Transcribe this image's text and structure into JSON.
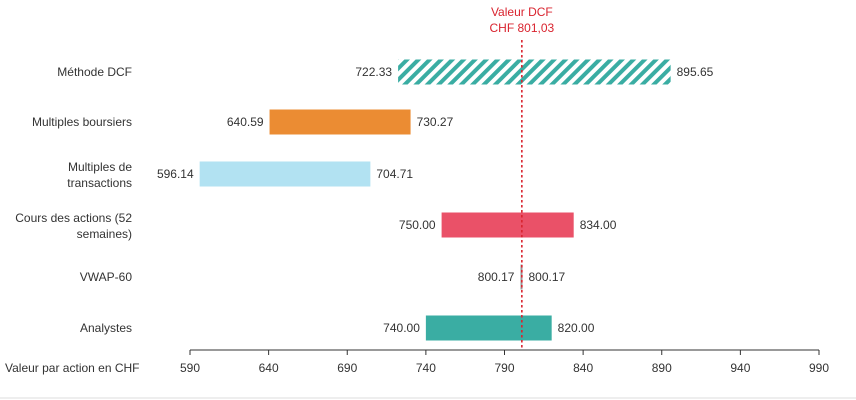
{
  "chart_data": {
    "type": "floating-bar",
    "orientation": "horizontal",
    "xlabel": "Valeur par action en CHF",
    "xlim": [
      590,
      990
    ],
    "xticks": [
      590,
      640,
      690,
      740,
      790,
      840,
      890,
      940,
      990
    ],
    "reference": {
      "value": 801.03,
      "label_line1": "Valeur DCF",
      "label_line2": "CHF 801,03",
      "color": "#d9232e"
    },
    "series": [
      {
        "category": [
          "Méthode DCF"
        ],
        "low": 722.33,
        "high": 895.65,
        "low_label": "722.33",
        "high_label": "895.65",
        "color": "#3aada3",
        "pattern": "hatched"
      },
      {
        "category": [
          "Multiples boursiers"
        ],
        "low": 640.59,
        "high": 730.27,
        "low_label": "640.59",
        "high_label": "730.27",
        "color": "#eb8c33",
        "pattern": "solid"
      },
      {
        "category": [
          "Multiples de",
          "transactions"
        ],
        "low": 596.14,
        "high": 704.71,
        "low_label": "596.14",
        "high_label": "704.71",
        "color": "#b2e2f2",
        "pattern": "solid"
      },
      {
        "category": [
          "Cours des actions (52",
          "semaines)"
        ],
        "low": 750.0,
        "high": 834.0,
        "low_label": "750.00",
        "high_label": "834.00",
        "color": "#ea5168",
        "pattern": "solid"
      },
      {
        "category": [
          "VWAP-60"
        ],
        "low": 800.17,
        "high": 800.17,
        "low_label": "800.17",
        "high_label": "800.17",
        "color": "#9a9a9a",
        "pattern": "solid"
      },
      {
        "category": [
          "Analystes"
        ],
        "low": 740.0,
        "high": 820.0,
        "low_label": "740.00",
        "high_label": "820.00",
        "color": "#3aada3",
        "pattern": "solid"
      }
    ]
  }
}
